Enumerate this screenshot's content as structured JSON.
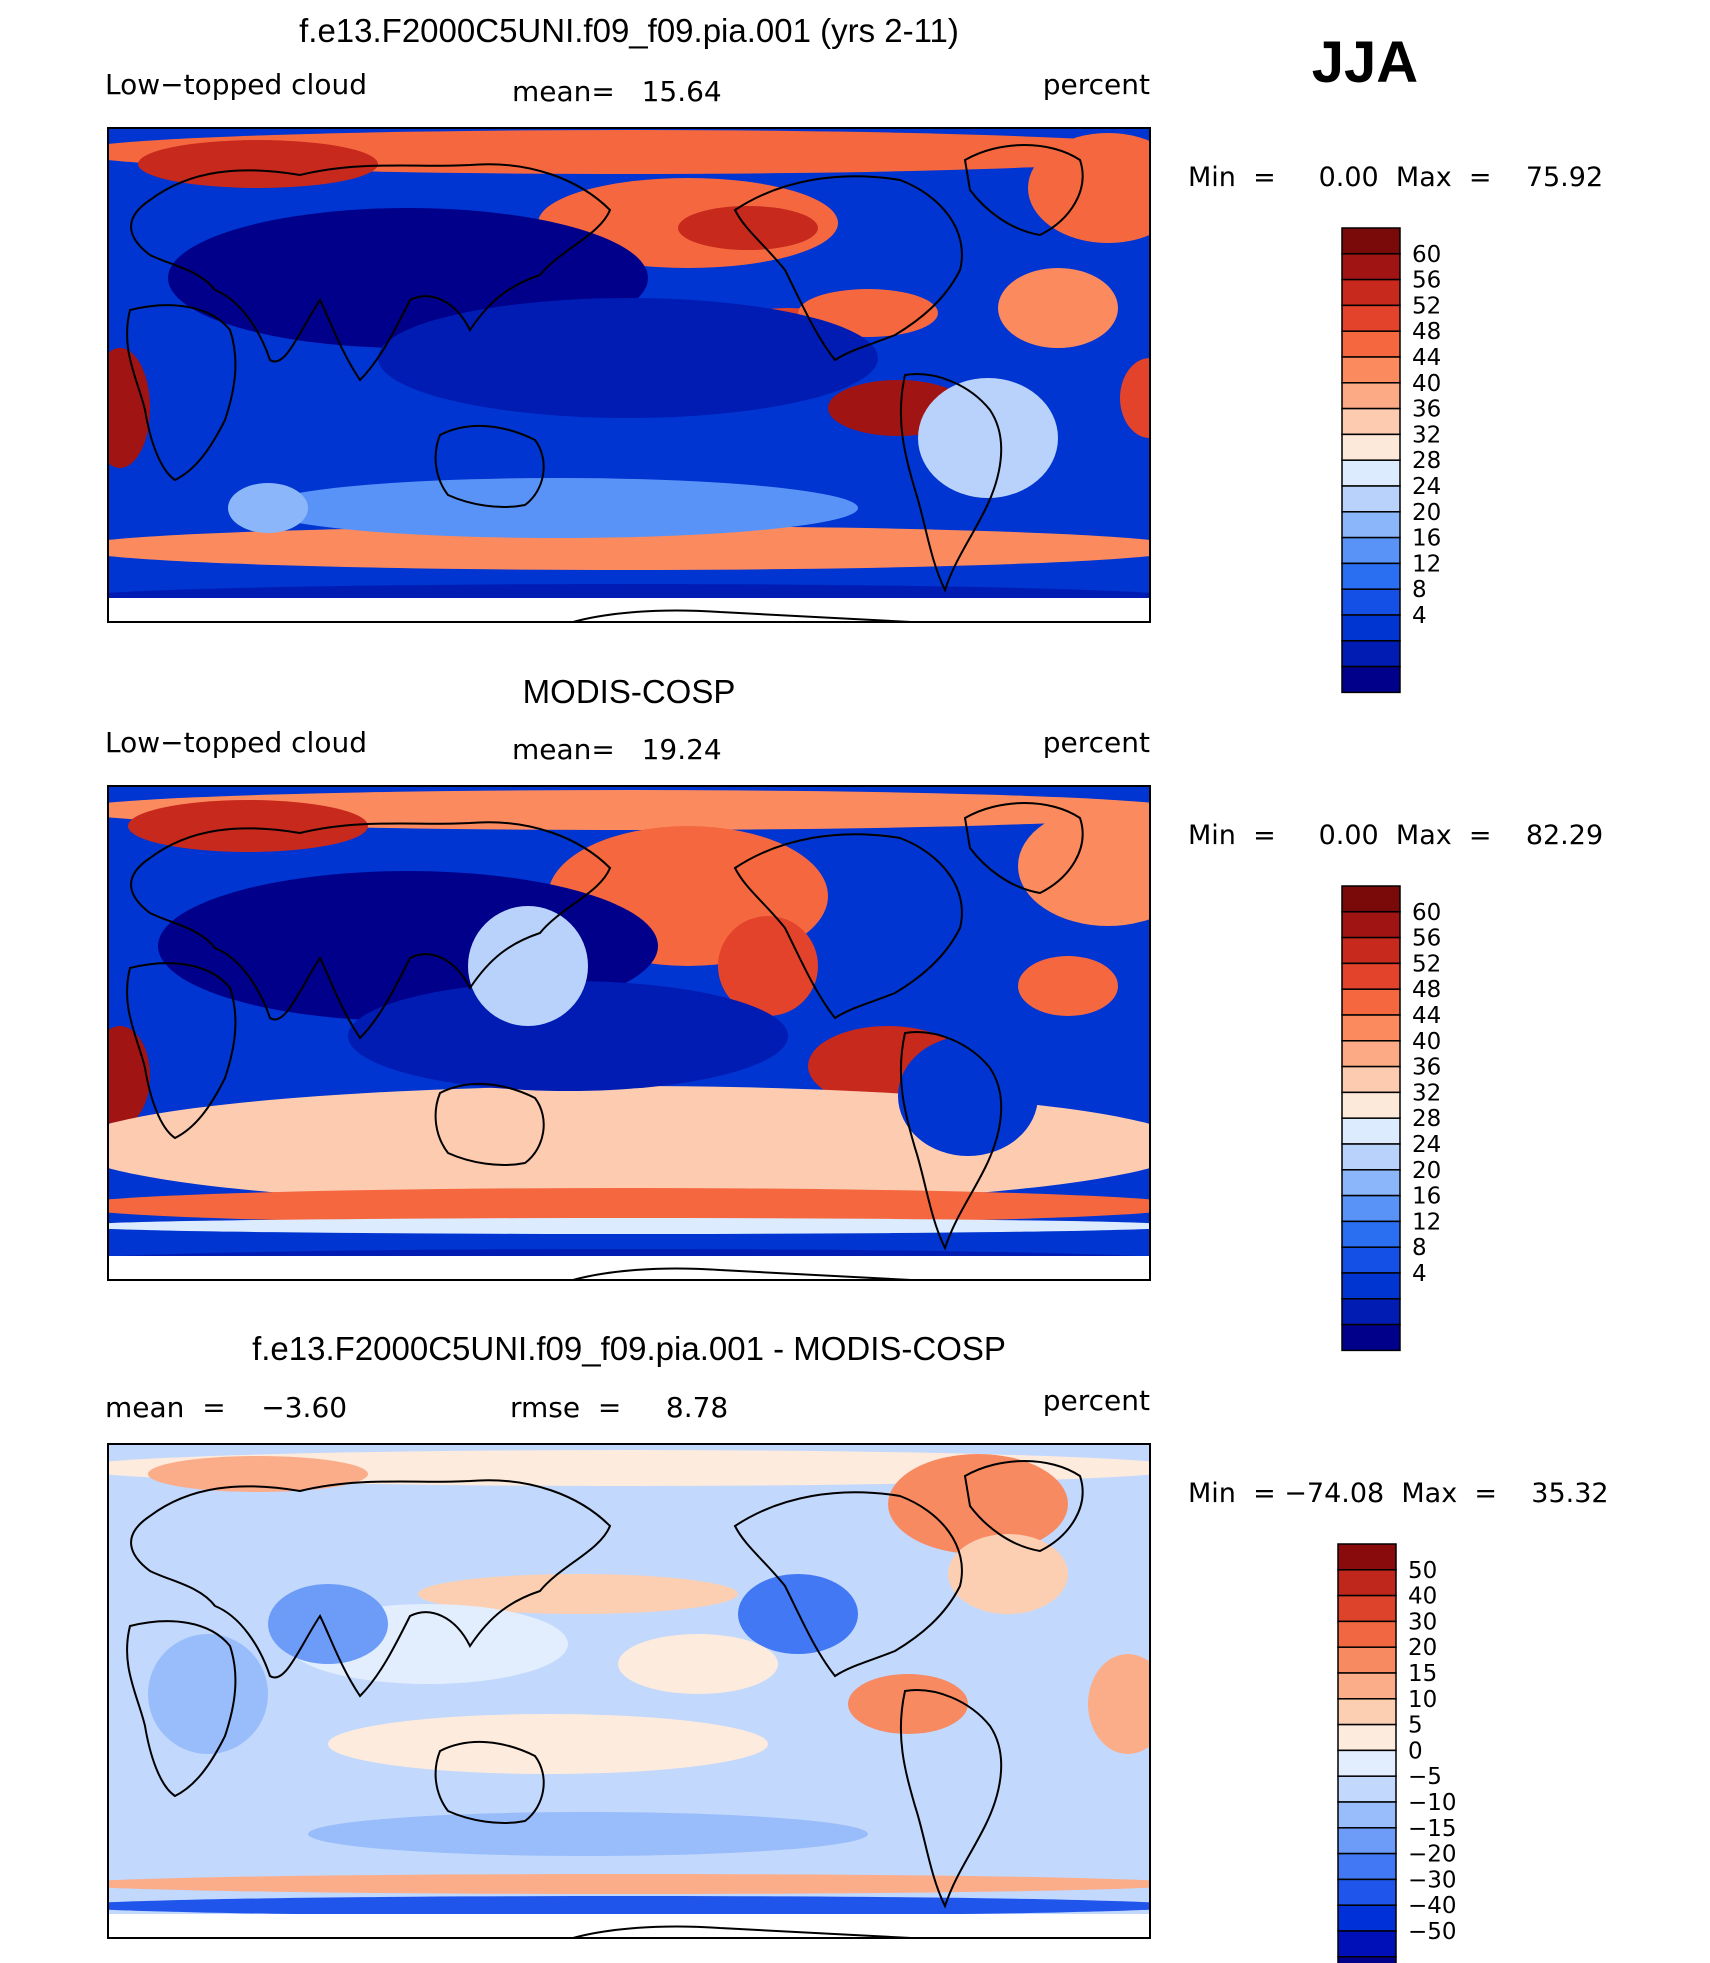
{
  "season": "JJA",
  "palettes": {
    "abs": [
      "#00008b",
      "#001cb3",
      "#0035d1",
      "#1450e6",
      "#2a6ef2",
      "#5a93f7",
      "#8cb6fa",
      "#b8d2fb",
      "#dcebfd",
      "#fde9da",
      "#fdcbb0",
      "#fcaa85",
      "#fb8a5e",
      "#f5683f",
      "#e3432a",
      "#c8291d",
      "#a11414",
      "#7a0a0a"
    ],
    "diff": [
      "#00008b",
      "#0010b8",
      "#0030d8",
      "#1f55ea",
      "#4278f3",
      "#6d9bf8",
      "#99bcfb",
      "#c2d8fc",
      "#e2eefd",
      "#fdebdd",
      "#fccfb3",
      "#fbad8a",
      "#f88a62",
      "#f06742",
      "#dd432a",
      "#c0271c",
      "#8a0b0b"
    ]
  },
  "chart_data": [
    {
      "type": "heatmap",
      "title": "f.e13.F2000C5UNI.f09_f09.pia.001 (yrs 2-11)",
      "variable": "Low−topped cloud",
      "stat_text": "mean=   15.64",
      "units": "percent",
      "minmax_text": "Min  =     0.00  Max  =    75.92",
      "contour_levels": [
        "60",
        "56",
        "52",
        "48",
        "44",
        "40",
        "36",
        "32",
        "28",
        "24",
        "20",
        "16",
        "12",
        "8",
        "4"
      ],
      "palette": "abs",
      "mean": 15.64,
      "min": 0.0,
      "max": 75.92
    },
    {
      "type": "heatmap",
      "title": "MODIS-COSP",
      "variable": "Low−topped cloud",
      "stat_text": "mean=   19.24",
      "units": "percent",
      "minmax_text": "Min  =     0.00  Max  =    82.29",
      "contour_levels": [
        "60",
        "56",
        "52",
        "48",
        "44",
        "40",
        "36",
        "32",
        "28",
        "24",
        "20",
        "16",
        "12",
        "8",
        "4"
      ],
      "palette": "abs",
      "mean": 19.24,
      "min": 0.0,
      "max": 82.29
    },
    {
      "type": "heatmap",
      "title": "f.e13.F2000C5UNI.f09_f09.pia.001 - MODIS-COSP",
      "variable": "mean  =    −3.60",
      "stat_text": "rmse  =     8.78",
      "units": "percent",
      "minmax_text": "Min  = −74.08  Max  =    35.32",
      "contour_levels": [
        "50",
        "40",
        "30",
        "20",
        "15",
        "10",
        "5",
        "0",
        "−5",
        "−10",
        "−15",
        "−20",
        "−30",
        "−40",
        "−50"
      ],
      "palette": "diff",
      "mean": -3.6,
      "rmse": 8.78,
      "min": -74.08,
      "max": 35.32
    }
  ]
}
